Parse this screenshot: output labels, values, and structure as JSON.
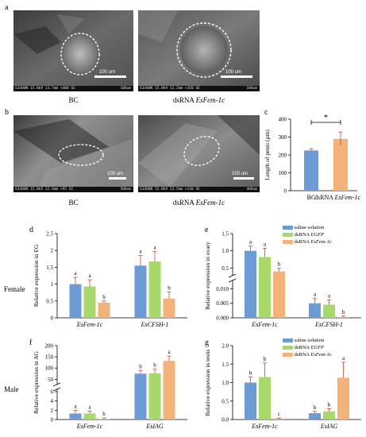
{
  "panels": {
    "a": "a",
    "b": "b",
    "c": "c",
    "d": "d",
    "e": "e",
    "f": "f",
    "g": "g"
  },
  "sem": {
    "a_left": {
      "scale": "100 um",
      "info": "S3400N 15.0kV 13.7mm ×400 SE",
      "info_scale": "100um",
      "caption": "BC"
    },
    "a_right": {
      "scale": "100 um",
      "info": "S3400N 15.0kV 12.2mm ×350 SE",
      "info_scale": "100um",
      "caption": "dsRNA EsFem-1c"
    },
    "b_left": {
      "scale": "100 um",
      "info": "S3400N 15.0kV 12.9mm ×95 SE",
      "info_scale": "500um",
      "caption": "BC"
    },
    "b_right": {
      "scale": "100 um",
      "info": "S3400N 15.0kV 13.5mm ×130 SE",
      "info_scale": "400um",
      "caption": "dsRNA EsFem-1c"
    }
  },
  "side_labels": {
    "female": "Female",
    "male": "Male"
  },
  "colors": {
    "saline": "#6c9bd6",
    "egfp": "#a6d86a",
    "fem": "#f2b27a",
    "error": "#c44a2f"
  },
  "legend": {
    "saline": "saline solution",
    "egfp_prefix": "dsRNA ",
    "egfp_italic": "EGFP",
    "fem_prefix": "dsRNA ",
    "fem_italic": "EsFem-1c"
  },
  "chart_data": [
    {
      "id": "c",
      "type": "bar",
      "categories": [
        "BC",
        "dsRNA EsFem-1c"
      ],
      "values": [
        225,
        290
      ],
      "errors": [
        10,
        38
      ],
      "ylabel": "Length of penis (μm)",
      "ylim": [
        0,
        400
      ],
      "yticks": [
        0,
        100,
        200,
        300,
        400
      ],
      "significance": "*"
    },
    {
      "id": "d",
      "type": "bar",
      "ylabel": "Relative expression in EG",
      "ylim": [
        0,
        2.5
      ],
      "yticks": [
        "0",
        "0.5",
        "1",
        "1.5",
        "2",
        "2.5"
      ],
      "groups": [
        "EsFem-1c",
        "EsCFSH-1"
      ],
      "series": [
        {
          "name": "saline solution",
          "values": [
            1.0,
            1.55
          ],
          "errors": [
            0.2,
            0.3
          ],
          "letters": [
            "a",
            "a"
          ]
        },
        {
          "name": "dsRNA EGFP",
          "values": [
            0.93,
            1.67
          ],
          "errors": [
            0.2,
            0.3
          ],
          "letters": [
            "a",
            "a"
          ]
        },
        {
          "name": "dsRNA EsFem-1c",
          "values": [
            0.45,
            0.57
          ],
          "errors": [
            0.05,
            0.2
          ],
          "letters": [
            "b",
            "b"
          ]
        }
      ]
    },
    {
      "id": "e",
      "type": "bar",
      "ylabel": "Relative expression in ovary",
      "yticks": [
        "0.000",
        "0.005",
        "0.010",
        "0.5",
        "1.0",
        "1.5"
      ],
      "groups": [
        "EsFem-1c",
        "EsCFSH-1"
      ],
      "series": [
        {
          "name": "saline solution",
          "values": [
            1.0,
            0.005
          ],
          "letters": [
            "a",
            "a"
          ]
        },
        {
          "name": "dsRNA EGFP",
          "values": [
            0.82,
            0.0045
          ],
          "letters": [
            "a",
            "a"
          ]
        },
        {
          "name": "dsRNA EsFem-1c",
          "values": [
            0.4,
            0.0003
          ],
          "letters": [
            "b",
            "b"
          ]
        }
      ]
    },
    {
      "id": "f",
      "type": "bar",
      "ylabel": "Relative expression in AG",
      "yticks": [
        "0",
        "2",
        "4",
        "6",
        "50",
        "100",
        "150",
        "200"
      ],
      "groups": [
        "EsFem-1c",
        "EsIAG"
      ],
      "series": [
        {
          "name": "saline solution",
          "values": [
            1.3,
            75
          ],
          "letters": [
            "a",
            "b"
          ]
        },
        {
          "name": "dsRNA EGFP",
          "values": [
            1.3,
            77
          ],
          "letters": [
            "a",
            "b"
          ]
        },
        {
          "name": "dsRNA EsFem-1c",
          "values": [
            0.15,
            132
          ],
          "letters": [
            "b",
            "a"
          ]
        }
      ]
    },
    {
      "id": "g",
      "type": "bar",
      "ylabel": "Relative expression in testis",
      "ylim": [
        0,
        2.0
      ],
      "yticks": [
        "0.0",
        "0.5",
        "1.0",
        "1.5",
        "2.0"
      ],
      "groups": [
        "EsFem-1c",
        "EsIAG"
      ],
      "series": [
        {
          "name": "saline solution",
          "values": [
            1.0,
            0.17
          ],
          "errors": [
            0.15,
            0.05
          ],
          "letters": [
            "b",
            "b"
          ]
        },
        {
          "name": "dsRNA EGFP",
          "values": [
            1.15,
            0.22
          ],
          "errors": [
            0.38,
            0.07
          ],
          "letters": [
            "b",
            "b"
          ]
        },
        {
          "name": "dsRNA EsFem-1c",
          "values": [
            0.03,
            1.13
          ],
          "errors": [
            0.01,
            0.42
          ],
          "letters": [
            "c",
            "a"
          ]
        }
      ]
    }
  ]
}
